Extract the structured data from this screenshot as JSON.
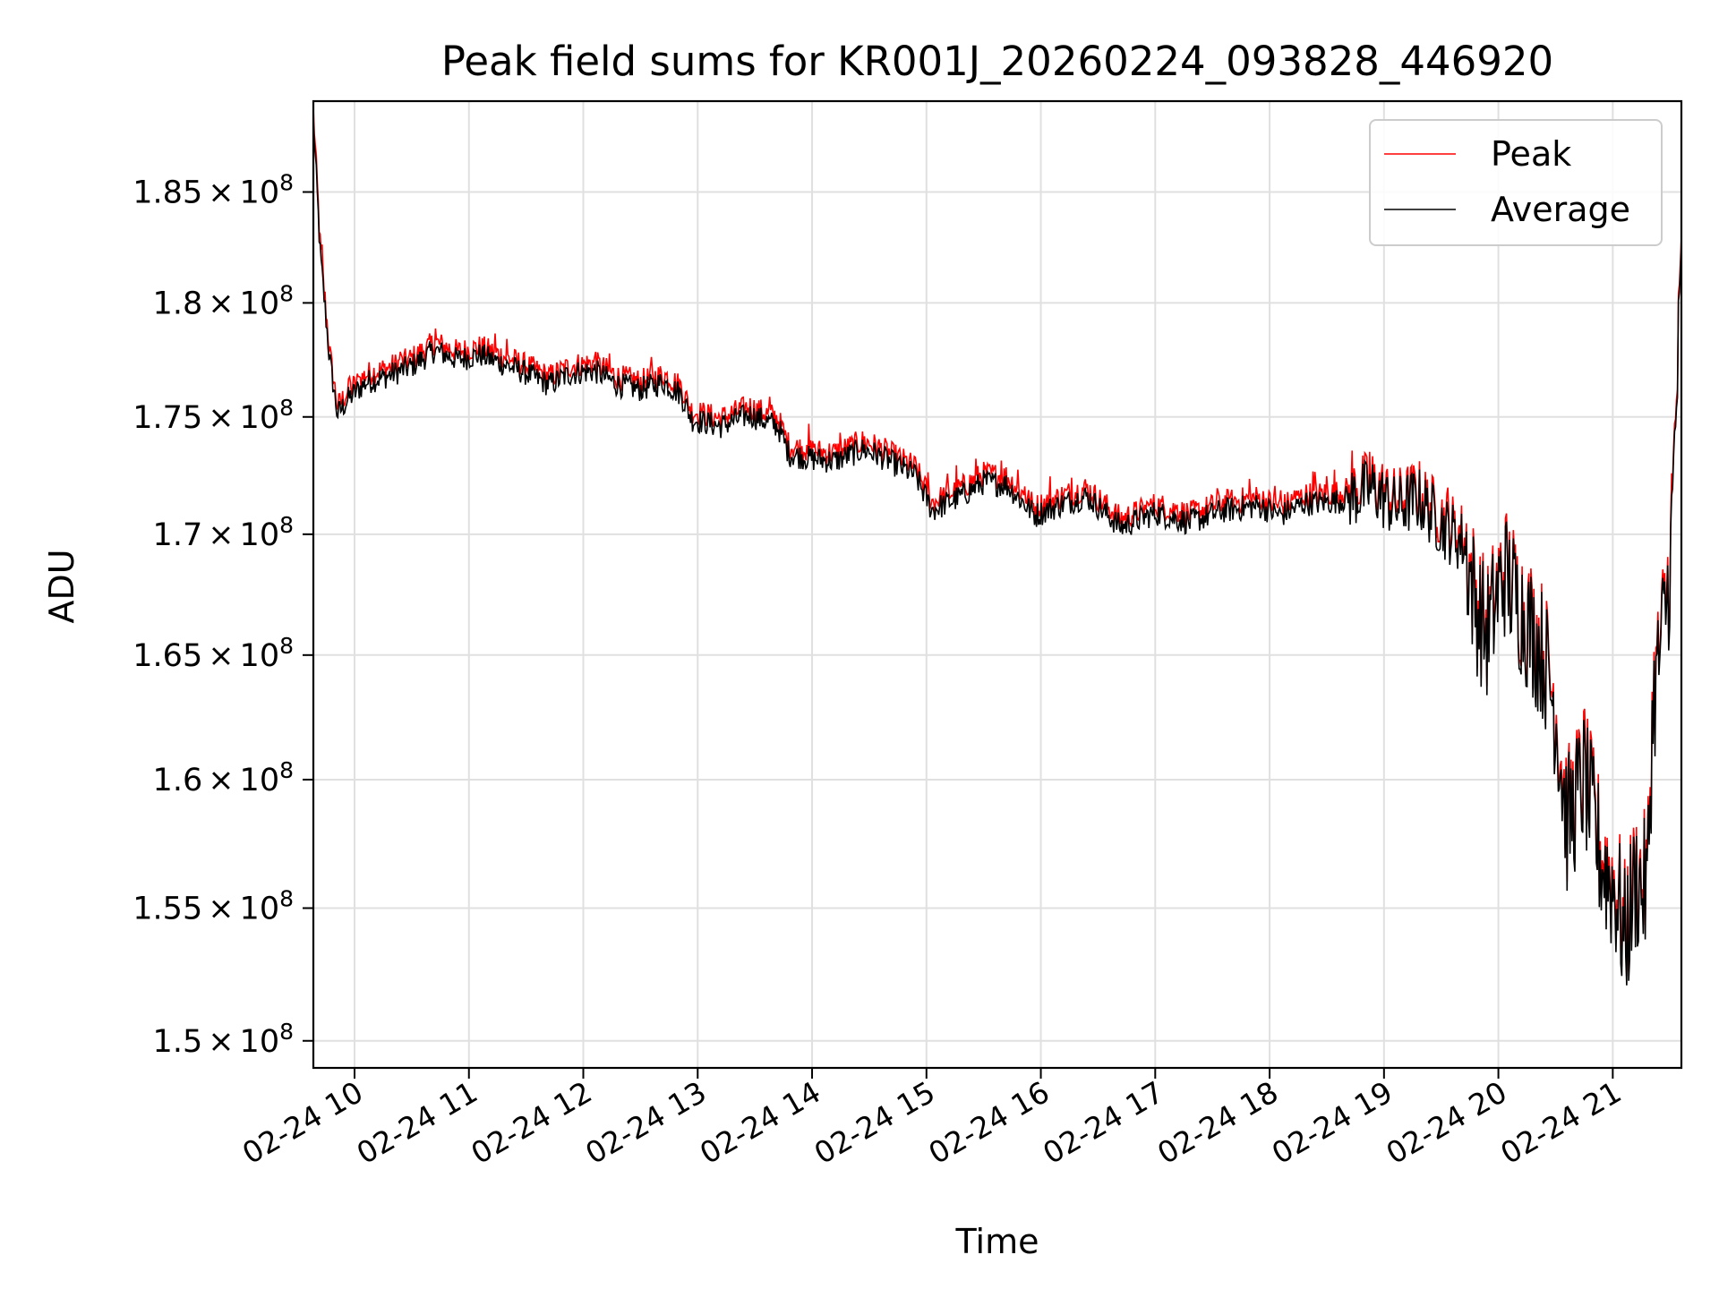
{
  "chart_data": {
    "type": "line",
    "title": "Peak field sums for KR001J_20260224_093828_446920",
    "xlabel": "Time",
    "ylabel": "ADU",
    "x_unit": "hours since 02-24 00:00",
    "xlim": [
      9.64,
      21.6
    ],
    "ylim": [
      149000000,
      189200000
    ],
    "yscale": "log",
    "grid": true,
    "legend_position": "upper right",
    "x_ticks": [
      {
        "value": 10,
        "label": "02-24 10"
      },
      {
        "value": 11,
        "label": "02-24 11"
      },
      {
        "value": 12,
        "label": "02-24 12"
      },
      {
        "value": 13,
        "label": "02-24 13"
      },
      {
        "value": 14,
        "label": "02-24 14"
      },
      {
        "value": 15,
        "label": "02-24 15"
      },
      {
        "value": 16,
        "label": "02-24 16"
      },
      {
        "value": 17,
        "label": "02-24 17"
      },
      {
        "value": 18,
        "label": "02-24 18"
      },
      {
        "value": 19,
        "label": "02-24 19"
      },
      {
        "value": 20,
        "label": "02-24 20"
      },
      {
        "value": 21,
        "label": "02-24 21"
      }
    ],
    "y_ticks": [
      {
        "value": 150000000,
        "mantissa": "1.5",
        "exponent": "8"
      },
      {
        "value": 155000000,
        "mantissa": "1.55",
        "exponent": "8"
      },
      {
        "value": 160000000,
        "mantissa": "1.6",
        "exponent": "8"
      },
      {
        "value": 165000000,
        "mantissa": "1.65",
        "exponent": "8"
      },
      {
        "value": 170000000,
        "mantissa": "1.7",
        "exponent": "8"
      },
      {
        "value": 175000000,
        "mantissa": "1.75",
        "exponent": "8"
      },
      {
        "value": 180000000,
        "mantissa": "1.8",
        "exponent": "8"
      },
      {
        "value": 185000000,
        "mantissa": "1.85",
        "exponent": "8"
      }
    ],
    "tick_separator": "×",
    "tick_base": "10",
    "series": [
      {
        "name": "Peak",
        "color": "#ff0000",
        "x": [
          9.64,
          9.7,
          9.78,
          9.85,
          9.95,
          10.1,
          10.3,
          10.5,
          10.7,
          10.9,
          11.1,
          11.3,
          11.5,
          11.7,
          11.9,
          12.1,
          12.3,
          12.5,
          12.7,
          12.85,
          12.95,
          13.2,
          13.45,
          13.7,
          13.8,
          14.0,
          14.2,
          14.45,
          14.6,
          14.9,
          15.05,
          15.3,
          15.5,
          15.7,
          15.95,
          16.2,
          16.4,
          16.7,
          17.0,
          17.3,
          17.6,
          17.9,
          18.1,
          18.3,
          18.6,
          18.9,
          19.1,
          19.3,
          19.5,
          19.7,
          19.8,
          19.9,
          20.05,
          20.2,
          20.4,
          20.5,
          20.6,
          20.75,
          20.9,
          21.05,
          21.1,
          21.2,
          21.3,
          21.35,
          21.5,
          21.6
        ],
        "values": [
          188600000,
          182500000,
          177800000,
          175300000,
          176000000,
          176700000,
          177000000,
          177400000,
          178100000,
          177700000,
          177900000,
          177500000,
          177100000,
          176600000,
          177100000,
          177200000,
          176600000,
          176400000,
          176700000,
          176200000,
          175100000,
          174800000,
          175300000,
          174800000,
          173600000,
          173400000,
          173300000,
          173800000,
          173500000,
          172700000,
          171200000,
          171800000,
          172400000,
          172300000,
          171000000,
          171500000,
          171800000,
          170500000,
          171100000,
          170700000,
          171200000,
          171400000,
          171000000,
          171500000,
          171600000,
          172100000,
          171300000,
          171700000,
          170600000,
          169800000,
          167300000,
          166000000,
          168600000,
          167000000,
          165100000,
          162900000,
          158400000,
          160200000,
          157000000,
          155500000,
          153900000,
          156200000,
          155800000,
          163000000,
          168500000,
          181300000
        ]
      },
      {
        "name": "Average",
        "color": "#000000",
        "x": [
          9.64,
          9.7,
          9.78,
          9.85,
          9.95,
          10.1,
          10.3,
          10.5,
          10.7,
          10.9,
          11.1,
          11.3,
          11.5,
          11.7,
          11.9,
          12.1,
          12.3,
          12.5,
          12.7,
          12.85,
          12.95,
          13.2,
          13.45,
          13.7,
          13.8,
          14.0,
          14.2,
          14.45,
          14.6,
          14.9,
          15.05,
          15.3,
          15.5,
          15.7,
          15.95,
          16.2,
          16.4,
          16.7,
          17.0,
          17.3,
          17.6,
          17.9,
          18.1,
          18.3,
          18.6,
          18.9,
          19.1,
          19.3,
          19.5,
          19.7,
          19.8,
          19.9,
          20.05,
          20.2,
          20.4,
          20.5,
          20.6,
          20.75,
          20.9,
          21.05,
          21.1,
          21.2,
          21.3,
          21.35,
          21.5,
          21.6
        ],
        "values": [
          188300000,
          182200000,
          177600000,
          175100000,
          175800000,
          176500000,
          176800000,
          177200000,
          177900000,
          177500000,
          177700000,
          177300000,
          176900000,
          176400000,
          176900000,
          177000000,
          176400000,
          176200000,
          176500000,
          176000000,
          174900000,
          174600000,
          175100000,
          174600000,
          173400000,
          173200000,
          173100000,
          173600000,
          173300000,
          172500000,
          171000000,
          171600000,
          172200000,
          172100000,
          170800000,
          171300000,
          171600000,
          170300000,
          170900000,
          170500000,
          171000000,
          171200000,
          170800000,
          171300000,
          171400000,
          171900000,
          171100000,
          171500000,
          170400000,
          169600000,
          167100000,
          165800000,
          168400000,
          166800000,
          164900000,
          162700000,
          158200000,
          160000000,
          156800000,
          155300000,
          153700000,
          156000000,
          155600000,
          162800000,
          168300000,
          181100000
        ]
      }
    ]
  }
}
